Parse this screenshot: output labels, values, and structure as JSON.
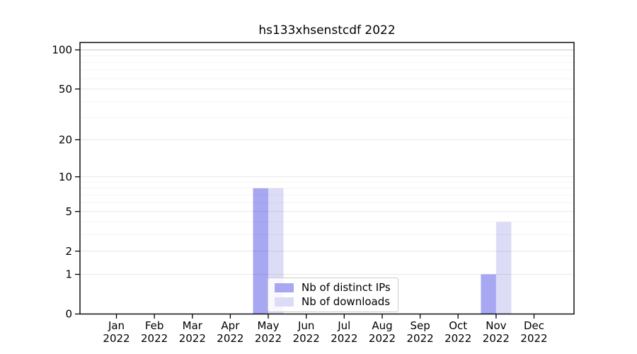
{
  "figure": {
    "background_color": "#ffffff",
    "text_color": "#000000"
  },
  "chart_data": {
    "type": "bar",
    "title": "hs133xhsenstcdf 2022",
    "xlabel": "",
    "ylabel": "",
    "yscale": "log1p",
    "ylim": [
      0,
      113
    ],
    "grid": "horizontal",
    "legend_position": "lower center",
    "categories": [
      {
        "month": "Jan",
        "year": "2022"
      },
      {
        "month": "Feb",
        "year": "2022"
      },
      {
        "month": "Mar",
        "year": "2022"
      },
      {
        "month": "Apr",
        "year": "2022"
      },
      {
        "month": "May",
        "year": "2022"
      },
      {
        "month": "Jun",
        "year": "2022"
      },
      {
        "month": "Jul",
        "year": "2022"
      },
      {
        "month": "Aug",
        "year": "2022"
      },
      {
        "month": "Sep",
        "year": "2022"
      },
      {
        "month": "Oct",
        "year": "2022"
      },
      {
        "month": "Nov",
        "year": "2022"
      },
      {
        "month": "Dec",
        "year": "2022"
      }
    ],
    "series": [
      {
        "name": "Nb of distinct IPs",
        "color": "#a8a8f2",
        "values": [
          0,
          0,
          0,
          0,
          8,
          0,
          0,
          0,
          0,
          0,
          1,
          0
        ]
      },
      {
        "name": "Nb of downloads",
        "color": "#dcdcf7",
        "values": [
          0,
          0,
          0,
          0,
          8,
          0,
          0,
          0,
          0,
          0,
          4,
          0
        ]
      }
    ],
    "y_major_ticks": [
      0,
      1,
      2,
      5,
      10,
      20,
      50,
      100
    ],
    "y_tick_labels": [
      "0",
      "1",
      "2",
      "5",
      "10",
      "20",
      "50",
      "100"
    ],
    "y_minor_gridlines": [
      3,
      4,
      6,
      7,
      8,
      9,
      30,
      40,
      60,
      70,
      80,
      90
    ]
  },
  "legend": {
    "entries": [
      {
        "label": "Nb of distinct IPs",
        "color": "#a8a8f2"
      },
      {
        "label": "Nb of downloads",
        "color": "#dcdcf7"
      }
    ]
  }
}
